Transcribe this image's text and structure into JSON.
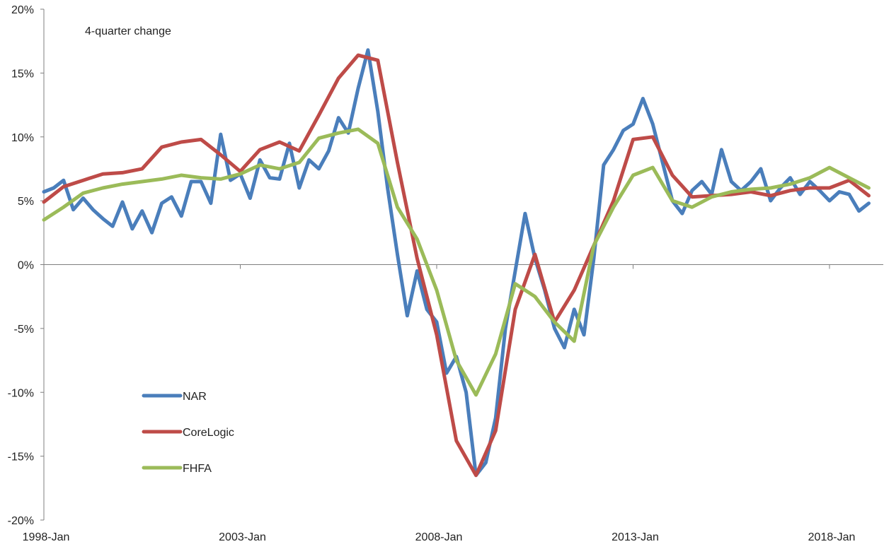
{
  "chart_data": {
    "type": "line",
    "annotation": "4-quarter change",
    "x_ticks": [
      "1998-Jan",
      "2003-Jan",
      "2008-Jan",
      "2013-Jan",
      "2018-Jan"
    ],
    "y_ticks": [
      "20%",
      "15%",
      "10%",
      "5%",
      "0%",
      "-5%",
      "-10%",
      "-15%",
      "-20%"
    ],
    "xlim": [
      "1998-01",
      "2019-12"
    ],
    "ylim": [
      -20,
      20
    ],
    "y_unit": "%",
    "legend_position": "lower-left",
    "series": [
      {
        "name": "NAR",
        "color": "#4a7ebb",
        "points": [
          [
            "1998-01",
            5.7
          ],
          [
            "1998-04",
            6.0
          ],
          [
            "1998-07",
            6.6
          ],
          [
            "1998-10",
            4.3
          ],
          [
            "1999-01",
            5.2
          ],
          [
            "1999-04",
            4.3
          ],
          [
            "1999-07",
            3.6
          ],
          [
            "1999-10",
            3.0
          ],
          [
            "2000-01",
            4.9
          ],
          [
            "2000-04",
            2.8
          ],
          [
            "2000-07",
            4.2
          ],
          [
            "2000-10",
            2.5
          ],
          [
            "2001-01",
            4.8
          ],
          [
            "2001-04",
            5.3
          ],
          [
            "2001-07",
            3.8
          ],
          [
            "2001-10",
            6.5
          ],
          [
            "2002-01",
            6.5
          ],
          [
            "2002-04",
            4.8
          ],
          [
            "2002-07",
            10.2
          ],
          [
            "2002-10",
            6.6
          ],
          [
            "2003-01",
            7.1
          ],
          [
            "2003-04",
            5.2
          ],
          [
            "2003-07",
            8.2
          ],
          [
            "2003-10",
            6.8
          ],
          [
            "2004-01",
            6.7
          ],
          [
            "2004-04",
            9.5
          ],
          [
            "2004-07",
            6.0
          ],
          [
            "2004-10",
            8.2
          ],
          [
            "2005-01",
            7.5
          ],
          [
            "2005-04",
            8.9
          ],
          [
            "2005-07",
            11.5
          ],
          [
            "2005-10",
            10.3
          ],
          [
            "2006-01",
            13.8
          ],
          [
            "2006-04",
            16.8
          ],
          [
            "2006-07",
            12.0
          ],
          [
            "2006-10",
            6.0
          ],
          [
            "2007-01",
            0.8
          ],
          [
            "2007-04",
            -4.0
          ],
          [
            "2007-07",
            -0.5
          ],
          [
            "2007-10",
            -3.5
          ],
          [
            "2008-01",
            -4.5
          ],
          [
            "2008-04",
            -8.5
          ],
          [
            "2008-07",
            -7.2
          ],
          [
            "2008-10",
            -10.0
          ],
          [
            "2009-01",
            -16.5
          ],
          [
            "2009-04",
            -15.5
          ],
          [
            "2009-07",
            -12.0
          ],
          [
            "2009-10",
            -5.0
          ],
          [
            "2010-01",
            -0.5
          ],
          [
            "2010-04",
            4.0
          ],
          [
            "2010-07",
            0.5
          ],
          [
            "2010-10",
            -2.0
          ],
          [
            "2011-01",
            -5.0
          ],
          [
            "2011-04",
            -6.5
          ],
          [
            "2011-07",
            -3.5
          ],
          [
            "2011-10",
            -5.5
          ],
          [
            "2012-01",
            0.5
          ],
          [
            "2012-04",
            7.8
          ],
          [
            "2012-07",
            9.0
          ],
          [
            "2012-10",
            10.5
          ],
          [
            "2013-01",
            11.0
          ],
          [
            "2013-04",
            13.0
          ],
          [
            "2013-07",
            11.0
          ],
          [
            "2013-10",
            8.0
          ],
          [
            "2014-01",
            5.0
          ],
          [
            "2014-04",
            4.0
          ],
          [
            "2014-07",
            5.8
          ],
          [
            "2014-10",
            6.5
          ],
          [
            "2015-01",
            5.5
          ],
          [
            "2015-04",
            9.0
          ],
          [
            "2015-07",
            6.5
          ],
          [
            "2015-10",
            5.8
          ],
          [
            "2016-01",
            6.5
          ],
          [
            "2016-04",
            7.5
          ],
          [
            "2016-07",
            5.0
          ],
          [
            "2016-10",
            6.0
          ],
          [
            "2017-01",
            6.8
          ],
          [
            "2017-04",
            5.5
          ],
          [
            "2017-07",
            6.5
          ],
          [
            "2017-10",
            5.8
          ],
          [
            "2018-01",
            5.0
          ],
          [
            "2018-04",
            5.7
          ],
          [
            "2018-07",
            5.5
          ],
          [
            "2018-10",
            4.2
          ],
          [
            "2019-01",
            4.8
          ]
        ]
      },
      {
        "name": "CoreLogic",
        "color": "#be4b48",
        "points": [
          [
            "1998-01",
            4.9
          ],
          [
            "1998-07",
            6.1
          ],
          [
            "1999-01",
            6.6
          ],
          [
            "1999-07",
            7.1
          ],
          [
            "2000-01",
            7.2
          ],
          [
            "2000-07",
            7.5
          ],
          [
            "2001-01",
            9.2
          ],
          [
            "2001-07",
            9.6
          ],
          [
            "2002-01",
            9.8
          ],
          [
            "2002-07",
            8.6
          ],
          [
            "2003-01",
            7.3
          ],
          [
            "2003-07",
            9.0
          ],
          [
            "2004-01",
            9.6
          ],
          [
            "2004-07",
            8.9
          ],
          [
            "2005-01",
            11.7
          ],
          [
            "2005-07",
            14.6
          ],
          [
            "2006-01",
            16.4
          ],
          [
            "2006-07",
            16.0
          ],
          [
            "2007-01",
            8.0
          ],
          [
            "2007-07",
            0.5
          ],
          [
            "2008-01",
            -5.5
          ],
          [
            "2008-07",
            -13.8
          ],
          [
            "2009-01",
            -16.5
          ],
          [
            "2009-07",
            -13.0
          ],
          [
            "2010-01",
            -3.5
          ],
          [
            "2010-07",
            0.8
          ],
          [
            "2011-01",
            -4.5
          ],
          [
            "2011-07",
            -2.0
          ],
          [
            "2012-01",
            1.5
          ],
          [
            "2012-07",
            5.0
          ],
          [
            "2013-01",
            9.8
          ],
          [
            "2013-07",
            10.0
          ],
          [
            "2014-01",
            7.0
          ],
          [
            "2014-07",
            5.3
          ],
          [
            "2015-01",
            5.4
          ],
          [
            "2015-07",
            5.5
          ],
          [
            "2016-01",
            5.7
          ],
          [
            "2016-07",
            5.4
          ],
          [
            "2017-01",
            5.8
          ],
          [
            "2017-07",
            6.0
          ],
          [
            "2018-01",
            6.0
          ],
          [
            "2018-07",
            6.6
          ],
          [
            "2019-01",
            5.4
          ]
        ]
      },
      {
        "name": "FHFA",
        "color": "#9bbb59",
        "points": [
          [
            "1998-01",
            3.5
          ],
          [
            "1998-07",
            4.5
          ],
          [
            "1999-01",
            5.6
          ],
          [
            "1999-07",
            6.0
          ],
          [
            "2000-01",
            6.3
          ],
          [
            "2000-07",
            6.5
          ],
          [
            "2001-01",
            6.7
          ],
          [
            "2001-07",
            7.0
          ],
          [
            "2002-01",
            6.8
          ],
          [
            "2002-07",
            6.7
          ],
          [
            "2003-01",
            7.1
          ],
          [
            "2003-07",
            7.8
          ],
          [
            "2004-01",
            7.5
          ],
          [
            "2004-07",
            8.0
          ],
          [
            "2005-01",
            9.9
          ],
          [
            "2005-07",
            10.3
          ],
          [
            "2006-01",
            10.6
          ],
          [
            "2006-07",
            9.5
          ],
          [
            "2007-01",
            4.5
          ],
          [
            "2007-07",
            2.0
          ],
          [
            "2008-01",
            -2.0
          ],
          [
            "2008-07",
            -7.5
          ],
          [
            "2009-01",
            -10.2
          ],
          [
            "2009-07",
            -7.0
          ],
          [
            "2010-01",
            -1.5
          ],
          [
            "2010-07",
            -2.5
          ],
          [
            "2011-01",
            -4.5
          ],
          [
            "2011-07",
            -6.0
          ],
          [
            "2012-01",
            1.5
          ],
          [
            "2012-07",
            4.5
          ],
          [
            "2013-01",
            7.0
          ],
          [
            "2013-07",
            7.6
          ],
          [
            "2014-01",
            5.0
          ],
          [
            "2014-07",
            4.5
          ],
          [
            "2015-01",
            5.3
          ],
          [
            "2015-07",
            5.7
          ],
          [
            "2016-01",
            5.9
          ],
          [
            "2016-07",
            6.0
          ],
          [
            "2017-01",
            6.3
          ],
          [
            "2017-07",
            6.8
          ],
          [
            "2018-01",
            7.6
          ],
          [
            "2018-07",
            6.8
          ],
          [
            "2019-01",
            6.0
          ]
        ]
      }
    ]
  }
}
